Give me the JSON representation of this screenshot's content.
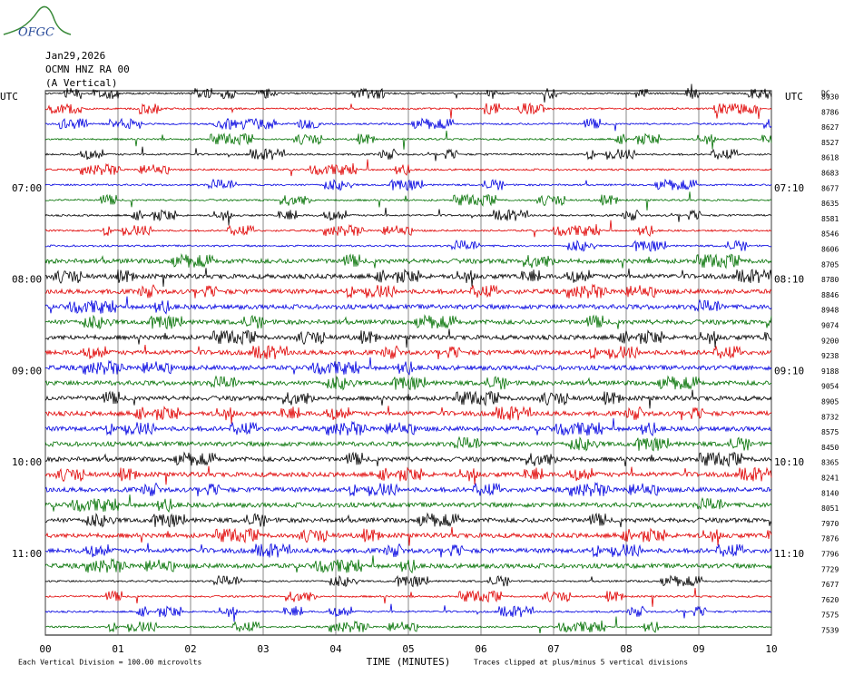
{
  "logo": "OFGC",
  "header": {
    "date": "Jan29,2026",
    "station": "OCMN HNZ RA 00",
    "component": "(A Vertical)"
  },
  "dc_label": "DC",
  "left_labels": [
    "UTC",
    "07:00",
    "08:00",
    "09:00",
    "10:00",
    "11:00"
  ],
  "right_labels": [
    "UTC",
    "07:10",
    "08:10",
    "09:10",
    "10:10",
    "11:10"
  ],
  "offsets": [
    8930,
    8786,
    8627,
    8527,
    8618,
    8683,
    8677,
    8635,
    8581,
    8546,
    8606,
    8705,
    8780,
    8846,
    8948,
    9074,
    9200,
    9238,
    9188,
    9054,
    8905,
    8732,
    8575,
    8450,
    8365,
    8241,
    8140,
    8051,
    7970,
    7876,
    7796,
    7729,
    7677,
    7620,
    7575,
    7539
  ],
  "x_axis": {
    "label": "TIME (MINUTES)",
    "xlim": [
      0,
      10
    ],
    "ticks": [
      {
        "value": 0,
        "label": "00"
      },
      {
        "value": 1,
        "label": "01"
      },
      {
        "value": 2,
        "label": "02"
      },
      {
        "value": 3,
        "label": "03"
      },
      {
        "value": 4,
        "label": "04"
      },
      {
        "value": 5,
        "label": "05"
      },
      {
        "value": 6,
        "label": "06"
      },
      {
        "value": 7,
        "label": "07"
      },
      {
        "value": 8,
        "label": "08"
      },
      {
        "value": 9,
        "label": "09"
      },
      {
        "value": 10,
        "label": "10"
      }
    ]
  },
  "scale_note": "Each Vertical Division =  100.00 microvolts",
  "clip_note": "Traces clipped at plus/minus 5 vertical divisions"
}
